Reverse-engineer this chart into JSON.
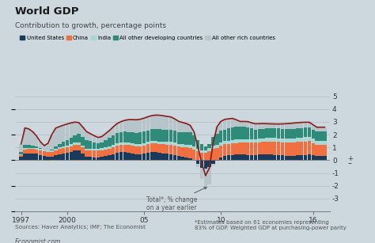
{
  "title": "World GDP",
  "subtitle": "Contribution to growth, percentage points",
  "background_color": "#ccd8de",
  "colors": {
    "united_states": "#1a3a5c",
    "china": "#f07040",
    "india": "#a8d8d4",
    "all_other_developing": "#2e8b7a",
    "all_other_rich": "#b5c5ca"
  },
  "legend_labels": [
    "United States",
    "China",
    "India",
    "All other developing countries",
    "All other rich countries"
  ],
  "source_text": "Sources: Haver Analytics; IMF; The Economist",
  "footnote_text": "*Estimates based on 61 economies representing\n83% of GDP. Weighted GDP at purchasing-power parity",
  "economist_text": "Economist.com",
  "annotation_text": "Total*, % change\non a year earlier"
}
